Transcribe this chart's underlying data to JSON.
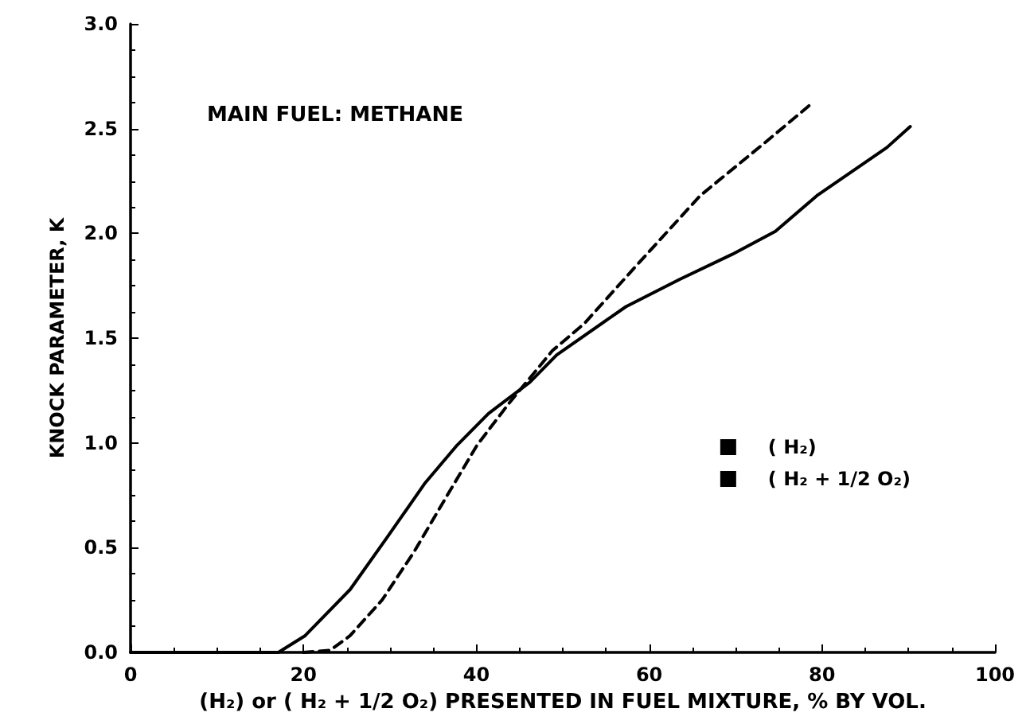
{
  "chart_data": {
    "type": "line",
    "xlabel": "(H₂) or ( H₂ + 1/2 O₂) PRESENTED IN FUEL MIXTURE, % BY VOL.",
    "ylabel": "KNOCK PARAMETER, K",
    "annotations": [
      "MAIN FUEL: METHANE"
    ],
    "series": [
      {
        "name": "( H₂)",
        "color": "#000000",
        "line_style": "solid",
        "x": [
          0,
          17.1,
          20.2,
          25.4,
          29.7,
          34.1,
          37.8,
          41.4,
          46.2,
          49.3,
          57.3,
          63.5,
          69.6,
          74.6,
          79.4,
          87.5,
          90.2
        ],
        "values": [
          0,
          0,
          0.08,
          0.3,
          0.55,
          0.81,
          0.99,
          1.14,
          1.29,
          1.42,
          1.65,
          1.78,
          1.9,
          2.01,
          2.18,
          2.41,
          2.51
        ]
      },
      {
        "name": "( H₂ + 1/2 O₂)",
        "color": "#000000",
        "line_style": "dashed",
        "x": [
          20,
          23.1,
          25.4,
          29.1,
          32.8,
          36.5,
          40.1,
          43.8,
          48.8,
          52.5,
          58.6,
          65.9,
          73.3,
          78.8
        ],
        "values": [
          0,
          0.01,
          0.08,
          0.25,
          0.48,
          0.74,
          0.99,
          1.19,
          1.44,
          1.57,
          1.85,
          2.18,
          2.43,
          2.62
        ]
      }
    ],
    "xlim": [
      0,
      100
    ],
    "xticks": [
      0,
      20,
      40,
      60,
      80,
      100
    ],
    "ylim": [
      0,
      3
    ],
    "yticks": [
      {
        "value": 0,
        "label": "0.0"
      },
      {
        "value": 0.5,
        "label": "0.5"
      },
      {
        "value": 1,
        "label": "1.0"
      },
      {
        "value": 1.5,
        "label": "1.5"
      },
      {
        "value": 2,
        "label": "2.0"
      },
      {
        "value": 2.5,
        "label": "2.5"
      },
      {
        "value": 3,
        "label": "3.0"
      }
    ],
    "grid": false,
    "legend": "right",
    "marker": "none"
  }
}
